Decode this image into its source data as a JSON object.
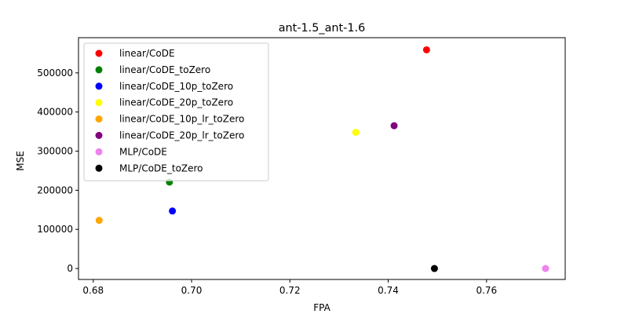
{
  "chart_data": {
    "type": "scatter",
    "title": "ant-1.5_ant-1.6",
    "xlabel": "FPA",
    "ylabel": "MSE",
    "xlim": [
      0.677,
      0.776
    ],
    "ylim": [
      -28000,
      590000
    ],
    "xticks": [
      0.68,
      0.7,
      0.72,
      0.74,
      0.76
    ],
    "xtick_labels": [
      "0.68",
      "0.70",
      "0.72",
      "0.74",
      "0.76"
    ],
    "yticks": [
      0,
      100000,
      200000,
      300000,
      400000,
      500000
    ],
    "ytick_labels": [
      "0",
      "100000",
      "200000",
      "300000",
      "400000",
      "500000"
    ],
    "grid": false,
    "legend_position": "top-left",
    "series": [
      {
        "name": "linear/CoDE",
        "color": "#ff0000",
        "x": [
          0.7478
        ],
        "y": [
          559000
        ]
      },
      {
        "name": "linear/CoDE_toZero",
        "color": "#008000",
        "x": [
          0.6955
        ],
        "y": [
          221000
        ]
      },
      {
        "name": "linear/CoDE_10p_toZero",
        "color": "#0000ff",
        "x": [
          0.6961
        ],
        "y": [
          147000
        ]
      },
      {
        "name": "linear/CoDE_20p_toZero",
        "color": "#ffff00",
        "x": [
          0.7334
        ],
        "y": [
          348000
        ]
      },
      {
        "name": "linear/CoDE_10p_lr_toZero",
        "color": "#ffa500",
        "x": [
          0.6812
        ],
        "y": [
          123000
        ]
      },
      {
        "name": "linear/CoDE_20p_lr_toZero",
        "color": "#800080",
        "x": [
          0.7412
        ],
        "y": [
          365000
        ]
      },
      {
        "name": "MLP/CoDE",
        "color": "#ee82ee",
        "x": [
          0.772
        ],
        "y": [
          0
        ]
      },
      {
        "name": "MLP/CoDE_toZero",
        "color": "#000000",
        "x": [
          0.7494
        ],
        "y": [
          0
        ]
      }
    ]
  }
}
